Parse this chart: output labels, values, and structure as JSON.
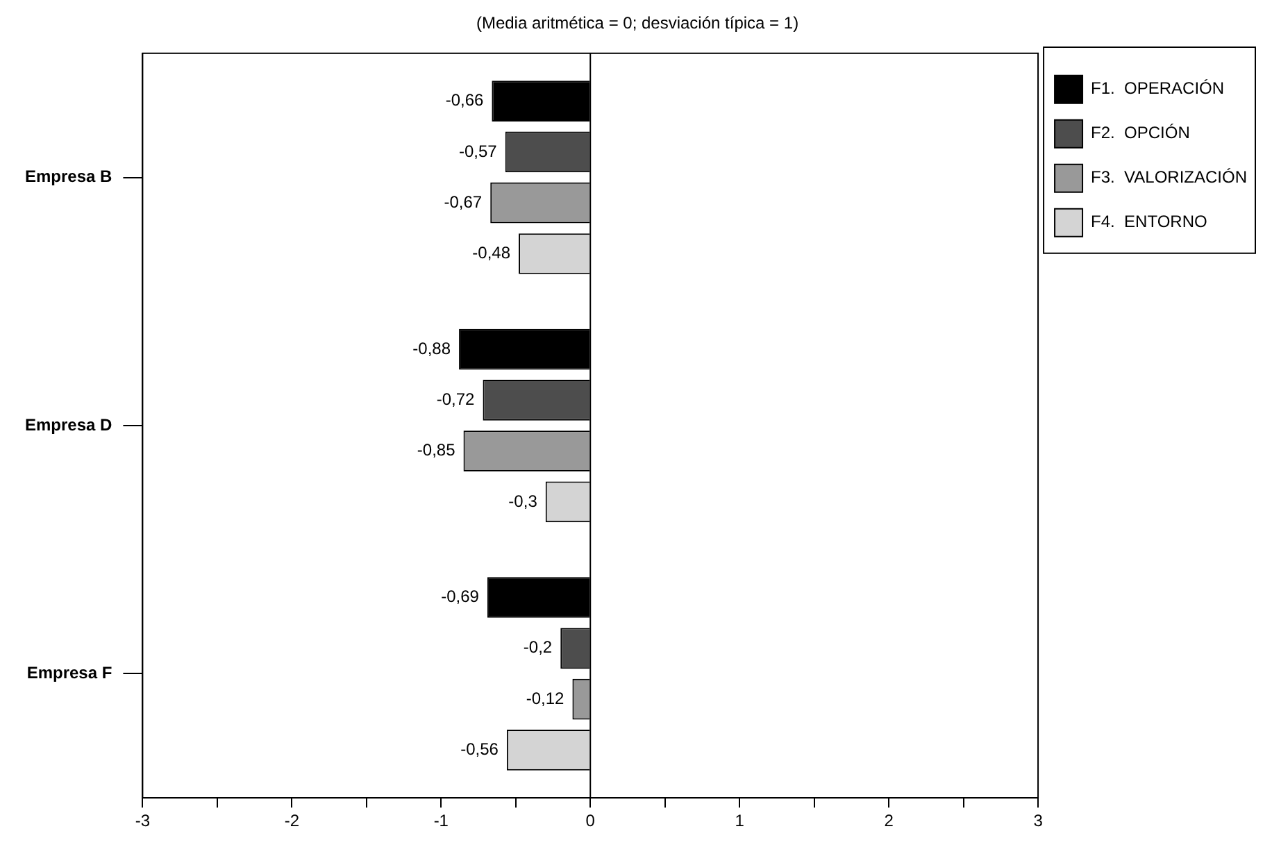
{
  "chart_data": {
    "type": "bar",
    "orientation": "horizontal",
    "title": "(Media aritmética = 0; desviación típica = 1)",
    "categories": [
      "Empresa B",
      "Empresa D",
      "Empresa F"
    ],
    "series": [
      {
        "name": "F1.  OPERACIÓN",
        "color": "#000000",
        "values": [
          -0.66,
          -0.88,
          -0.69
        ],
        "value_labels": [
          "-0,66",
          "-0,88",
          "-0,69"
        ]
      },
      {
        "name": "F2.  OPCIÓN",
        "color": "#4d4d4d",
        "values": [
          -0.57,
          -0.72,
          -0.2
        ],
        "value_labels": [
          "-0,57",
          "-0,72",
          "-0,2"
        ]
      },
      {
        "name": "F3.  VALORIZACIÓN",
        "color": "#999999",
        "values": [
          -0.67,
          -0.85,
          -0.12
        ],
        "value_labels": [
          "-0,67",
          "-0,85",
          "-0,12"
        ]
      },
      {
        "name": "F4.  ENTORNO",
        "color": "#d4d4d4",
        "values": [
          -0.48,
          -0.3,
          -0.56
        ],
        "value_labels": [
          "-0,48",
          "-0,3",
          "-0,56"
        ]
      }
    ],
    "xlim": [
      -3,
      3
    ],
    "xticks": [
      -3,
      {
        "value": -2.5,
        "label": null
      },
      -2,
      {
        "value": -1.5,
        "label": null
      },
      -1,
      {
        "value": -0.5,
        "label": null
      },
      0,
      {
        "value": 0.5,
        "label": null
      },
      1,
      {
        "value": 1.5,
        "label": null
      },
      2,
      {
        "value": 2.5,
        "label": null
      },
      3
    ],
    "ref_lines": [
      {
        "axis": "x",
        "value": 0
      }
    ],
    "grid": false,
    "legend": "top right"
  }
}
